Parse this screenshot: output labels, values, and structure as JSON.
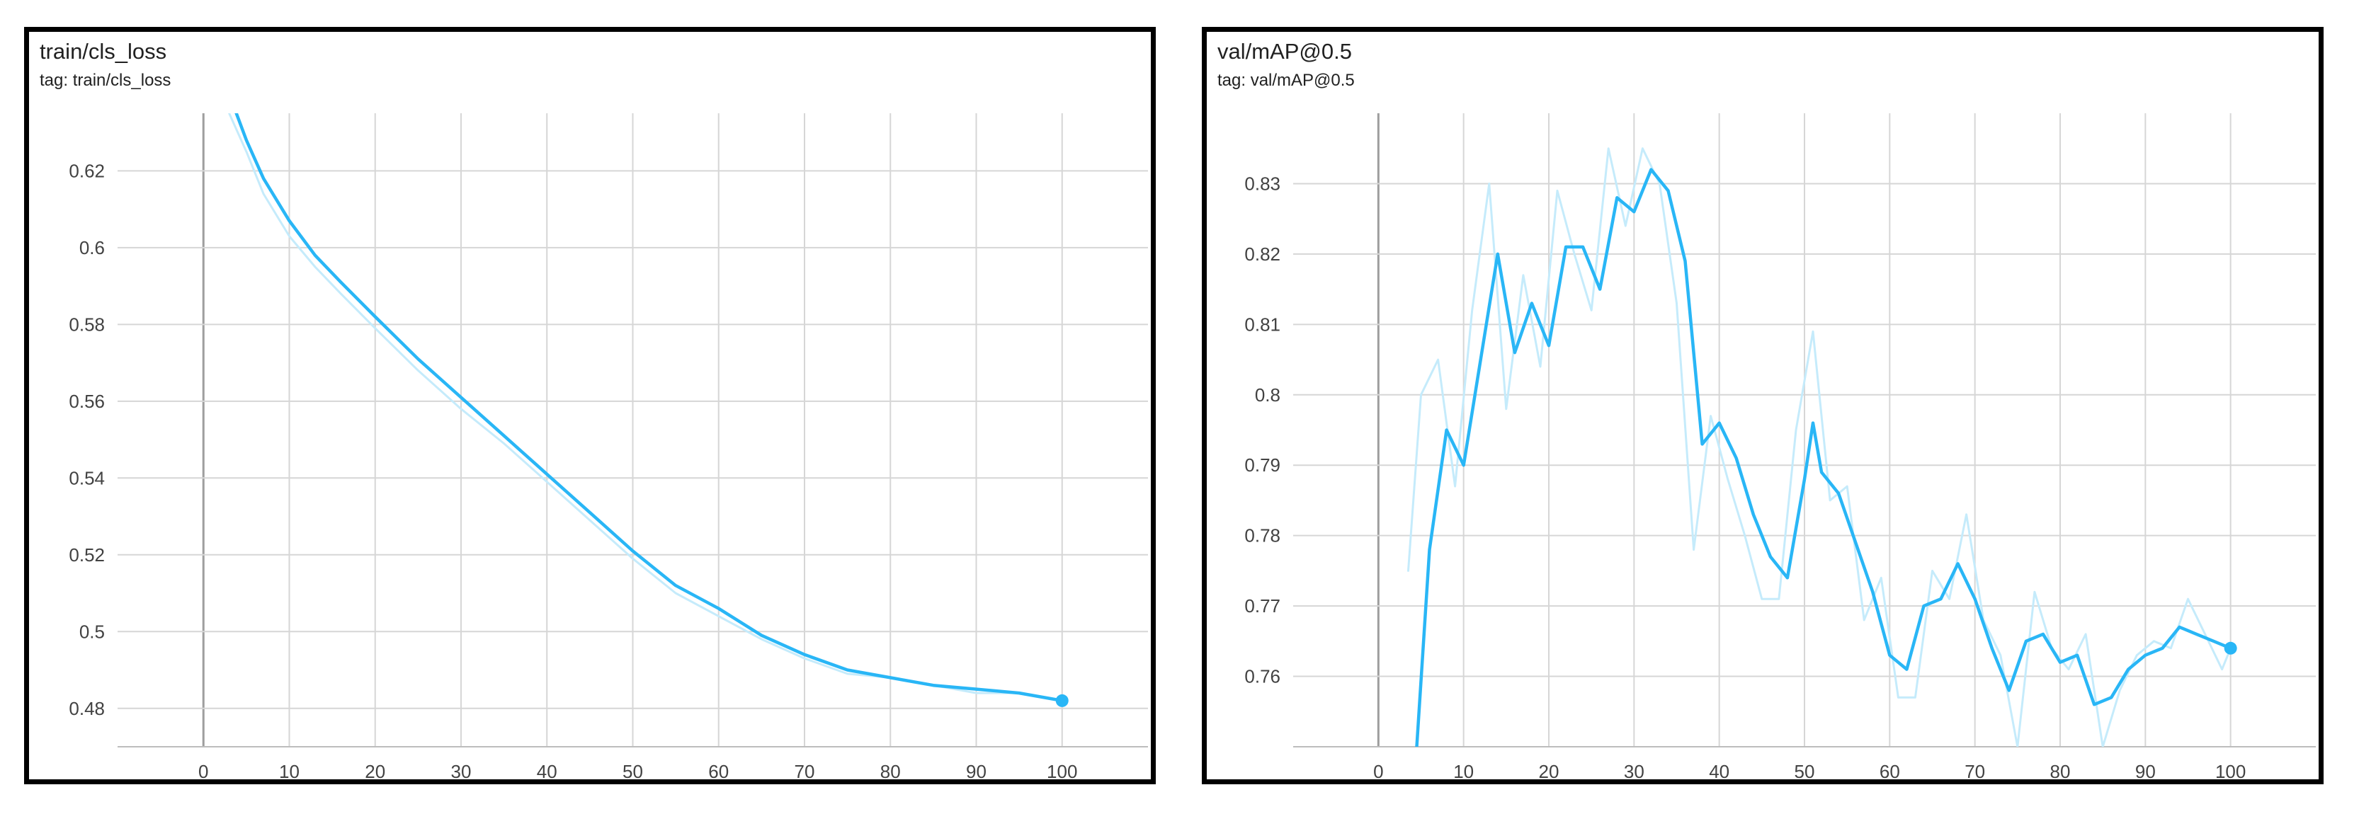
{
  "panels": [
    {
      "title": "train/cls_loss",
      "tag": "tag: train/cls_loss"
    },
    {
      "title": "val/mAP@0.5",
      "tag": "tag: val/mAP@0.5"
    }
  ],
  "colors": {
    "smoothed": "#29b6f6",
    "raw": "#c5ebfb",
    "grid": "#d6d6d6"
  },
  "chart_data": [
    {
      "type": "line",
      "title": "train/cls_loss",
      "xlabel": "",
      "ylabel": "",
      "xlim": [
        -10,
        110
      ],
      "ylim": [
        0.47,
        0.635
      ],
      "x_ticks": [
        0,
        10,
        20,
        30,
        40,
        50,
        60,
        70,
        80,
        90,
        100
      ],
      "y_ticks": [
        0.48,
        0.5,
        0.52,
        0.54,
        0.56,
        0.58,
        0.6,
        0.62
      ],
      "y_tick_labels": [
        "0.48",
        "0.5",
        "0.52",
        "0.54",
        "0.56",
        "0.58",
        "0.6",
        "0.62"
      ],
      "grid": true,
      "series": [
        {
          "role": "smoothed",
          "x": [
            3,
            5,
            7,
            10,
            13,
            16,
            20,
            25,
            30,
            35,
            40,
            45,
            50,
            55,
            60,
            65,
            70,
            75,
            80,
            85,
            90,
            95,
            100
          ],
          "y": [
            0.64,
            0.628,
            0.618,
            0.607,
            0.598,
            0.591,
            0.582,
            0.571,
            0.561,
            0.551,
            0.541,
            0.531,
            0.521,
            0.512,
            0.506,
            0.499,
            0.494,
            0.49,
            0.488,
            0.486,
            0.485,
            0.484,
            0.482
          ]
        },
        {
          "role": "raw",
          "x": [
            3,
            5,
            7,
            10,
            13,
            16,
            20,
            25,
            30,
            35,
            40,
            45,
            50,
            55,
            60,
            65,
            70,
            75,
            80,
            85,
            90,
            95,
            100
          ],
          "y": [
            0.635,
            0.625,
            0.614,
            0.603,
            0.595,
            0.588,
            0.579,
            0.568,
            0.558,
            0.549,
            0.539,
            0.529,
            0.519,
            0.51,
            0.504,
            0.498,
            0.493,
            0.489,
            0.488,
            0.486,
            0.484,
            0.484,
            0.482
          ]
        }
      ]
    },
    {
      "type": "line",
      "title": "val/mAP@0.5",
      "xlabel": "",
      "ylabel": "",
      "xlim": [
        -10,
        110
      ],
      "ylim": [
        0.75,
        0.84
      ],
      "x_ticks": [
        0,
        10,
        20,
        30,
        40,
        50,
        60,
        70,
        80,
        90,
        100
      ],
      "y_ticks": [
        0.76,
        0.77,
        0.78,
        0.79,
        0.8,
        0.81,
        0.82,
        0.83
      ],
      "y_tick_labels": [
        "0.76",
        "0.77",
        "0.78",
        "0.79",
        "0.8",
        "0.81",
        "0.82",
        "0.83"
      ],
      "grid": true,
      "series": [
        {
          "role": "smoothed",
          "x": [
            4.5,
            6,
            8,
            10,
            12,
            14,
            16,
            18,
            20,
            22,
            24,
            26,
            28,
            30,
            32,
            34,
            36,
            38,
            40,
            42,
            44,
            46,
            48,
            50,
            51,
            52,
            54,
            56,
            58,
            60,
            62,
            64,
            66,
            68,
            70,
            72,
            74,
            76,
            78,
            80,
            82,
            84,
            86,
            88,
            90,
            92,
            94,
            96,
            98,
            100
          ],
          "y": [
            0.75,
            0.778,
            0.795,
            0.79,
            0.805,
            0.82,
            0.806,
            0.813,
            0.807,
            0.821,
            0.821,
            0.815,
            0.828,
            0.826,
            0.832,
            0.829,
            0.819,
            0.793,
            0.796,
            0.791,
            0.783,
            0.777,
            0.774,
            0.788,
            0.796,
            0.789,
            0.786,
            0.779,
            0.772,
            0.763,
            0.761,
            0.77,
            0.771,
            0.776,
            0.771,
            0.764,
            0.758,
            0.765,
            0.766,
            0.762,
            0.763,
            0.756,
            0.757,
            0.761,
            0.763,
            0.764,
            0.767,
            0.766,
            0.765,
            0.764
          ]
        },
        {
          "role": "raw",
          "x": [
            3.5,
            5,
            7,
            9,
            11,
            13,
            15,
            17,
            19,
            21,
            23,
            25,
            27,
            29,
            31,
            33,
            35,
            37,
            39,
            41,
            43,
            45,
            47,
            49,
            51,
            53,
            55,
            57,
            59,
            61,
            63,
            65,
            67,
            69,
            71,
            73,
            75,
            77,
            79,
            81,
            83,
            85,
            87,
            89,
            91,
            93,
            95,
            97,
            99,
            100
          ],
          "y": [
            0.775,
            0.8,
            0.805,
            0.787,
            0.812,
            0.83,
            0.798,
            0.817,
            0.804,
            0.829,
            0.82,
            0.812,
            0.835,
            0.824,
            0.835,
            0.83,
            0.813,
            0.778,
            0.797,
            0.788,
            0.78,
            0.771,
            0.771,
            0.795,
            0.809,
            0.785,
            0.787,
            0.768,
            0.774,
            0.757,
            0.757,
            0.775,
            0.771,
            0.783,
            0.768,
            0.763,
            0.75,
            0.772,
            0.764,
            0.761,
            0.766,
            0.75,
            0.758,
            0.763,
            0.765,
            0.764,
            0.771,
            0.766,
            0.761,
            0.764
          ]
        }
      ]
    }
  ]
}
